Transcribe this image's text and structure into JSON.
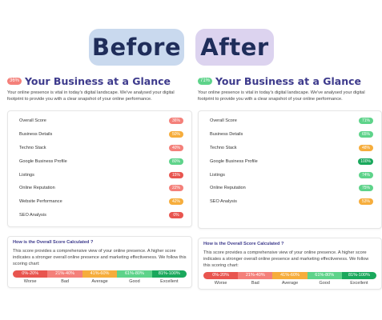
{
  "header": {
    "before_label": "Before",
    "after_label": "After"
  },
  "colors": {
    "red": "#e8554f",
    "salmon": "#f4807a",
    "orange": "#f6ad3c",
    "lightgreen": "#5ed38a",
    "green": "#1aa85c",
    "title": "#3d3a8c"
  },
  "before": {
    "overall_badge": "36%",
    "title": "Your Business at a Glance",
    "intro": "Your online presence is vital in today's digital landscape. We've analysed your digital footprint to provide you with a clear snapshot of your online performance.",
    "metrics": [
      {
        "label": "Overall Score",
        "value": "36%",
        "color": "#f4807a"
      },
      {
        "label": "Business Details",
        "value": "50%",
        "color": "#f6ad3c"
      },
      {
        "label": "Techno Stack",
        "value": "40%",
        "color": "#f4807a"
      },
      {
        "label": "Google Business Profile",
        "value": "80%",
        "color": "#5ed38a"
      },
      {
        "label": "Listings",
        "value": "15%",
        "color": "#e8554f"
      },
      {
        "label": "Online Reputation",
        "value": "22%",
        "color": "#f4807a"
      },
      {
        "label": "Website Performance",
        "value": "42%",
        "color": "#f6ad3c"
      },
      {
        "label": "SEO Analysis",
        "value": "0%",
        "color": "#e8554f"
      }
    ]
  },
  "after": {
    "overall_badge": "71%",
    "title": "Your Business at a Glance",
    "intro": "Your online presence is vital in today's digital landscape. We've analysed your digital footprint to provide you with a clear snapshot of your online performance.",
    "metrics": [
      {
        "label": "Overall Score",
        "value": "71%",
        "color": "#5ed38a"
      },
      {
        "label": "Business Details",
        "value": "65%",
        "color": "#5ed38a"
      },
      {
        "label": "Techno Stack",
        "value": "48%",
        "color": "#f6ad3c"
      },
      {
        "label": "Google Business Profile",
        "value": "100%",
        "color": "#1aa85c"
      },
      {
        "label": "Listings",
        "value": "74%",
        "color": "#5ed38a"
      },
      {
        "label": "Online Reputation",
        "value": "75%",
        "color": "#5ed38a"
      },
      {
        "label": "SEO Analysis",
        "value": "53%",
        "color": "#f6ad3c"
      }
    ]
  },
  "calculation": {
    "title": "How is the Overall Score Calculated ?",
    "text": "This score provides a comprehensive view of your online presence. A higher score indicates a stronger overall online presence and marketing effectiveness. We follow this scoring chart:",
    "ranges": [
      "0%-20%",
      "21%-40%",
      "41%-60%",
      "61%-80%",
      "81%-100%"
    ],
    "labels": [
      "Worse",
      "Bad",
      "Average",
      "Good",
      "Excellent"
    ],
    "range_colors": [
      "#e8554f",
      "#f4807a",
      "#f6ad3c",
      "#5ed38a",
      "#1aa85c"
    ]
  }
}
